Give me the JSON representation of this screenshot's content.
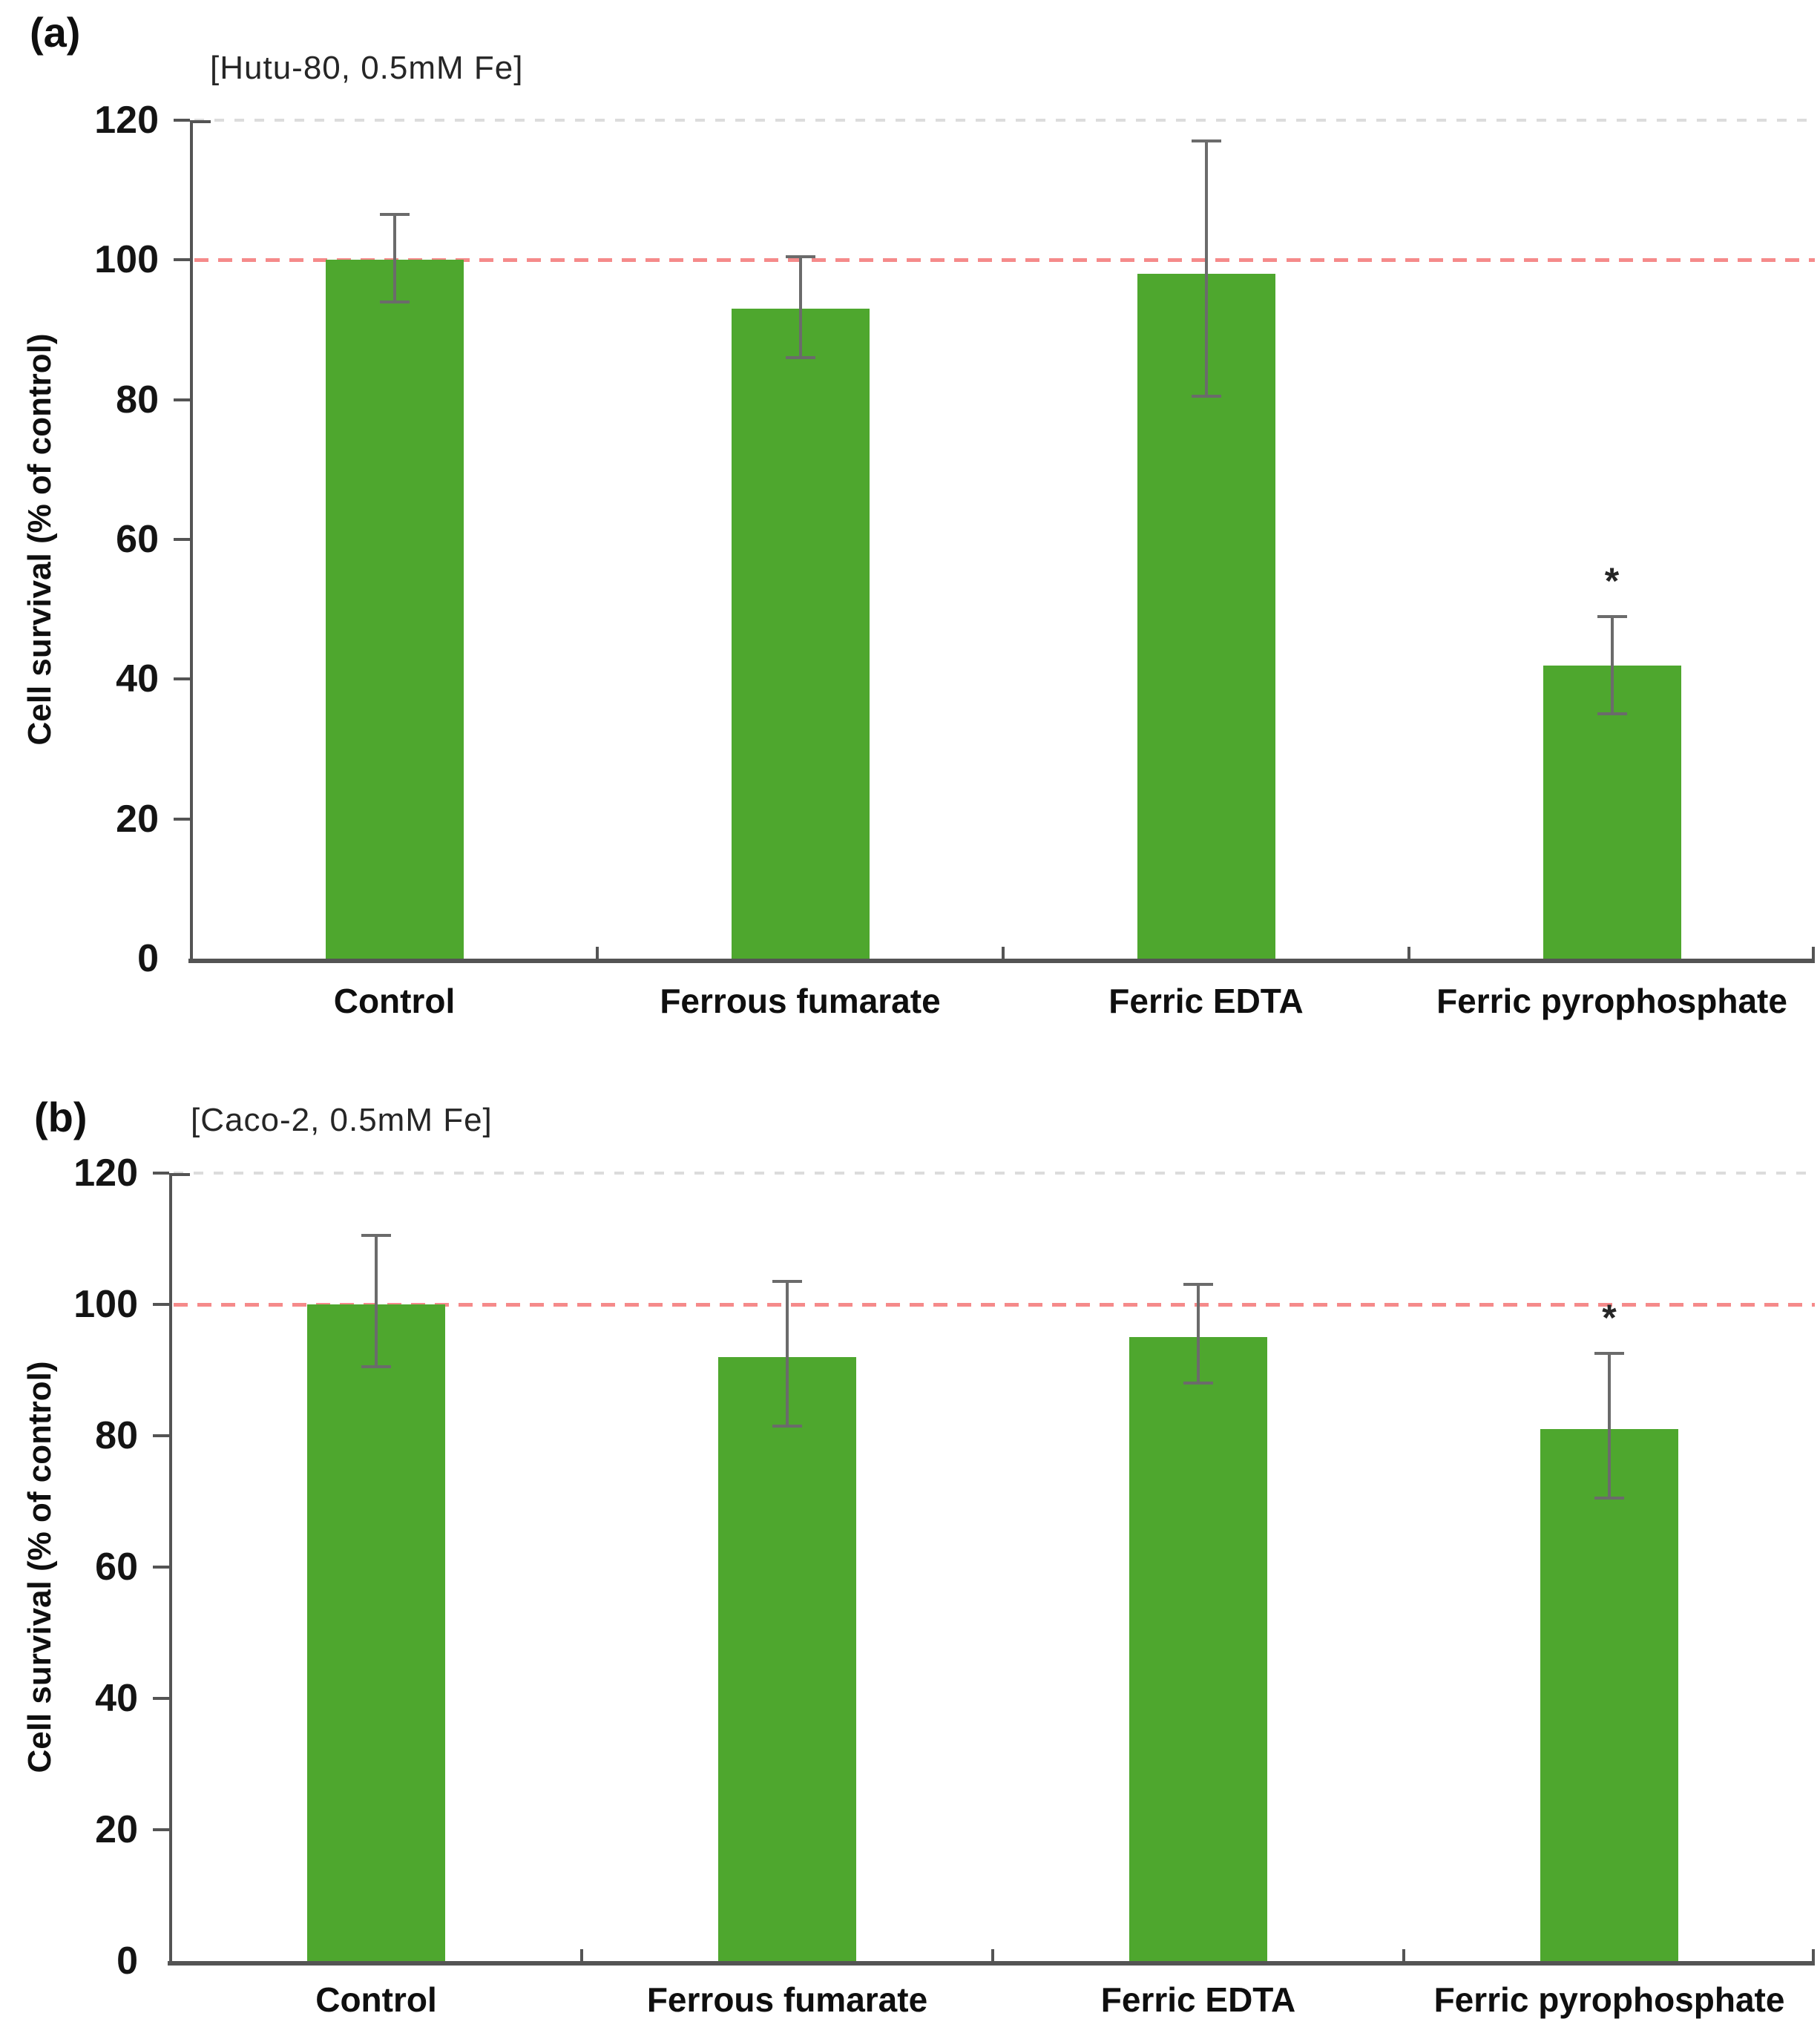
{
  "figure": {
    "y_axis_title": "Cell survival (% of control)",
    "colors": {
      "bar": "#4ea72e",
      "error_bar": "#6b6b6b",
      "axis": "#545454",
      "reference_line": "#f58a8a",
      "top_gridline": "#dcdcdc",
      "text": "#0f0f0f"
    }
  },
  "chart_data": [
    {
      "type": "bar",
      "panel_label": "(a)",
      "title": "[Hutu-80, 0.5mM Fe]",
      "ylabel": "Cell survival (% of control)",
      "ylim": [
        0,
        120
      ],
      "yticks": [
        0,
        20,
        40,
        60,
        80,
        100,
        120
      ],
      "reference_line_y": 100,
      "top_gridline_y": 120,
      "grid": "off",
      "legend": "none",
      "categories": [
        "Control",
        "Ferrous fumarate",
        "Ferric EDTA",
        "Ferric pyrophosphate"
      ],
      "values": [
        100,
        93,
        98,
        42
      ],
      "error_low": [
        6,
        7,
        17.5,
        7
      ],
      "error_high": [
        6.5,
        7.5,
        19,
        7
      ],
      "significance": [
        "",
        "",
        "",
        "*"
      ]
    },
    {
      "type": "bar",
      "panel_label": "(b)",
      "title": "[Caco-2, 0.5mM Fe]",
      "ylabel": "Cell survival (% of control)",
      "ylim": [
        0,
        120
      ],
      "yticks": [
        0,
        20,
        40,
        60,
        80,
        100,
        120
      ],
      "reference_line_y": 100,
      "top_gridline_y": 120,
      "grid": "off",
      "legend": "none",
      "categories": [
        "Control",
        "Ferrous fumarate",
        "Ferric EDTA",
        "Ferric pyrophosphate"
      ],
      "values": [
        100,
        92,
        95,
        81
      ],
      "error_low": [
        9.5,
        10.5,
        7,
        10.5
      ],
      "error_high": [
        10.5,
        11.5,
        8,
        11.5
      ],
      "significance": [
        "",
        "",
        "",
        "*"
      ]
    }
  ]
}
